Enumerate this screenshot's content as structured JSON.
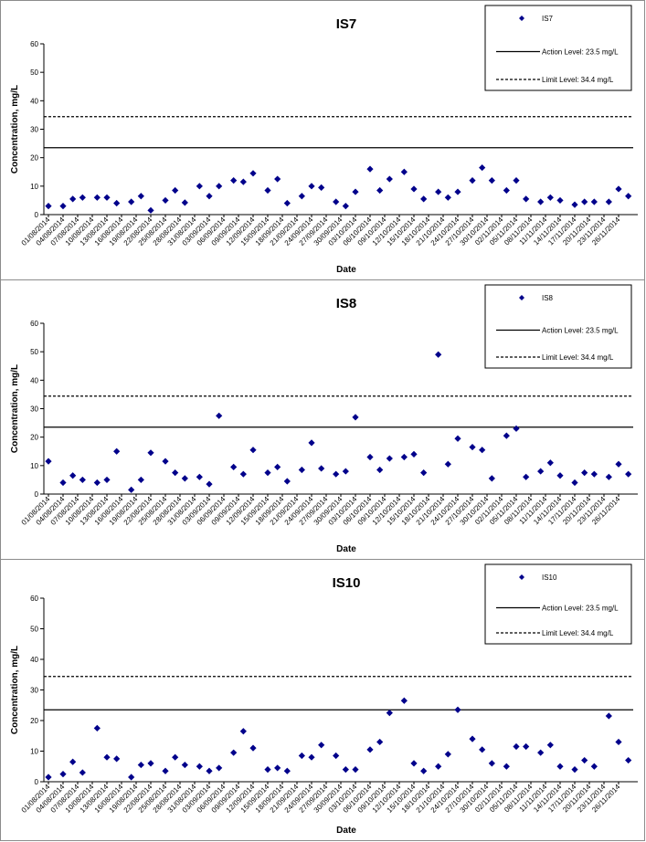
{
  "chart_data": [
    {
      "type": "scatter",
      "title": "IS7",
      "xlabel": "Date",
      "ylabel": "Concentration, mg/L",
      "ylim": [
        0,
        60
      ],
      "yticks": [
        "0",
        "10",
        "20",
        "30",
        "40",
        "50",
        "60"
      ],
      "grid": false,
      "legend_position": "top-right",
      "x_tick_labels": [
        "01/08/2014",
        "04/08/2014",
        "07/08/2014",
        "10/08/2014",
        "13/08/2014",
        "16/08/2014",
        "19/08/2014",
        "22/08/2014",
        "25/08/2014",
        "28/08/2014",
        "31/08/2014",
        "03/09/2014",
        "06/09/2014",
        "09/09/2014",
        "12/09/2014",
        "15/09/2014",
        "18/09/2014",
        "21/09/2014",
        "24/09/2014",
        "27/09/2014",
        "30/09/2014",
        "03/10/2014",
        "06/10/2014",
        "09/10/2014",
        "12/10/2014",
        "15/10/2014",
        "18/10/2014",
        "21/10/2014",
        "24/10/2014",
        "27/10/2014",
        "30/10/2014",
        "02/11/2014",
        "05/11/2014",
        "08/11/2014",
        "11/11/2014",
        "14/11/2014",
        "17/11/2014",
        "20/11/2014",
        "23/11/2014",
        "26/11/2014"
      ],
      "series": [
        {
          "name": "IS7",
          "color": "#00008b",
          "marker": "diamond",
          "x": [
            "01/08/2014",
            "04/08/2014",
            "06/08/2014",
            "08/08/2014",
            "11/08/2014",
            "13/08/2014",
            "15/08/2014",
            "18/08/2014",
            "20/08/2014",
            "22/08/2014",
            "25/08/2014",
            "27/08/2014",
            "29/08/2014",
            "01/09/2014",
            "03/09/2014",
            "05/09/2014",
            "08/09/2014",
            "10/09/2014",
            "12/09/2014",
            "15/09/2014",
            "17/09/2014",
            "19/09/2014",
            "22/09/2014",
            "24/09/2014",
            "26/09/2014",
            "29/09/2014",
            "01/10/2014",
            "03/10/2014",
            "06/10/2014",
            "08/10/2014",
            "10/10/2014",
            "13/10/2014",
            "15/10/2014",
            "17/10/2014",
            "20/10/2014",
            "22/10/2014",
            "24/10/2014",
            "27/10/2014",
            "29/10/2014",
            "31/10/2014",
            "03/11/2014",
            "05/11/2014",
            "07/11/2014",
            "10/11/2014",
            "12/11/2014",
            "14/11/2014",
            "17/11/2014",
            "19/11/2014",
            "21/11/2014",
            "24/11/2014",
            "26/11/2014",
            "28/11/2014"
          ],
          "y": [
            3,
            3,
            5.5,
            6,
            6,
            6,
            4,
            4.5,
            6.5,
            1.5,
            5,
            8.5,
            4.2,
            10,
            6.5,
            10,
            12,
            11.5,
            14.5,
            8.5,
            12.5,
            4,
            6.5,
            10,
            9.5,
            4.5,
            3,
            8,
            16,
            8.5,
            12.5,
            15,
            9,
            5.5,
            8,
            6,
            8,
            12,
            16.5,
            12,
            8.5,
            12,
            5.5,
            4.5,
            6,
            5,
            3.5,
            4.5,
            4.5,
            4.5,
            9,
            6.5
          ]
        },
        {
          "name": "Action Level: 23.5 mg/L",
          "type": "line",
          "style": "solid",
          "color": "#000000",
          "y": 23.5
        },
        {
          "name": "Limit Level: 34.4 mg/L",
          "type": "line",
          "style": "dashed",
          "color": "#000000",
          "y": 34.4
        }
      ]
    },
    {
      "type": "scatter",
      "title": "IS8",
      "xlabel": "Date",
      "ylabel": "Concentration, mg/L",
      "ylim": [
        0,
        60
      ],
      "yticks": [
        "0",
        "10",
        "20",
        "30",
        "40",
        "50",
        "60"
      ],
      "grid": false,
      "legend_position": "top-right",
      "x_tick_labels": [
        "01/08/2014",
        "04/08/2014",
        "07/08/2014",
        "10/08/2014",
        "13/08/2014",
        "16/08/2014",
        "19/08/2014",
        "22/08/2014",
        "25/08/2014",
        "28/08/2014",
        "31/08/2014",
        "03/09/2014",
        "06/09/2014",
        "09/09/2014",
        "12/09/2014",
        "15/09/2014",
        "18/09/2014",
        "21/09/2014",
        "24/09/2014",
        "27/09/2014",
        "30/09/2014",
        "03/10/2014",
        "06/10/2014",
        "09/10/2014",
        "12/10/2014",
        "15/10/2014",
        "18/10/2014",
        "21/10/2014",
        "24/10/2014",
        "27/10/2014",
        "30/10/2014",
        "02/11/2014",
        "05/11/2014",
        "08/11/2014",
        "11/11/2014",
        "14/11/2014",
        "17/11/2014",
        "20/11/2014",
        "23/11/2014",
        "26/11/2014"
      ],
      "series": [
        {
          "name": "IS8",
          "color": "#00008b",
          "marker": "diamond",
          "x": [
            "01/08/2014",
            "04/08/2014",
            "06/08/2014",
            "08/08/2014",
            "11/08/2014",
            "13/08/2014",
            "15/08/2014",
            "18/08/2014",
            "20/08/2014",
            "22/08/2014",
            "25/08/2014",
            "27/08/2014",
            "29/08/2014",
            "01/09/2014",
            "03/09/2014",
            "05/09/2014",
            "08/09/2014",
            "10/09/2014",
            "12/09/2014",
            "15/09/2014",
            "17/09/2014",
            "19/09/2014",
            "22/09/2014",
            "24/09/2014",
            "26/09/2014",
            "29/09/2014",
            "01/10/2014",
            "03/10/2014",
            "06/10/2014",
            "08/10/2014",
            "10/10/2014",
            "13/10/2014",
            "15/10/2014",
            "17/10/2014",
            "20/10/2014",
            "22/10/2014",
            "24/10/2014",
            "27/10/2014",
            "29/10/2014",
            "31/10/2014",
            "03/11/2014",
            "05/11/2014",
            "07/11/2014",
            "10/11/2014",
            "12/11/2014",
            "14/11/2014",
            "17/11/2014",
            "19/11/2014",
            "21/11/2014",
            "24/11/2014",
            "26/11/2014",
            "28/11/2014"
          ],
          "y": [
            11.5,
            4,
            6.5,
            5,
            4,
            5,
            15,
            1.5,
            5,
            14.5,
            11.5,
            7.5,
            5.5,
            6,
            3.5,
            27.5,
            9.5,
            7,
            15.5,
            7.5,
            9.5,
            4.5,
            8.5,
            18,
            9,
            7,
            8,
            27,
            13,
            8.5,
            12.5,
            13,
            14,
            7.5,
            49,
            10.5,
            19.5,
            16.5,
            15.5,
            5.5,
            20.5,
            23,
            6,
            8,
            11,
            6.5,
            4,
            7.5,
            7,
            6,
            10.5,
            7
          ]
        },
        {
          "name": "Action Level: 23.5 mg/L",
          "type": "line",
          "style": "solid",
          "color": "#000000",
          "y": 23.5
        },
        {
          "name": "Limit Level: 34.4 mg/L",
          "type": "line",
          "style": "dashed",
          "color": "#000000",
          "y": 34.4
        }
      ]
    },
    {
      "type": "scatter",
      "title": "IS10",
      "xlabel": "Date",
      "ylabel": "Concentration, mg/L",
      "ylim": [
        0,
        60
      ],
      "yticks": [
        "0",
        "10",
        "20",
        "30",
        "40",
        "50",
        "60"
      ],
      "grid": false,
      "legend_position": "top-right",
      "x_tick_labels": [
        "01/08/2014",
        "04/08/2014",
        "07/08/2014",
        "10/08/2014",
        "13/08/2014",
        "16/08/2014",
        "19/08/2014",
        "22/08/2014",
        "25/08/2014",
        "28/08/2014",
        "31/08/2014",
        "03/09/2014",
        "06/09/2014",
        "09/09/2014",
        "12/09/2014",
        "15/09/2014",
        "18/09/2014",
        "21/09/2014",
        "24/09/2014",
        "27/09/2014",
        "30/09/2014",
        "03/10/2014",
        "06/10/2014",
        "09/10/2014",
        "12/10/2014",
        "15/10/2014",
        "18/10/2014",
        "21/10/2014",
        "24/10/2014",
        "27/10/2014",
        "30/10/2014",
        "02/11/2014",
        "05/11/2014",
        "08/11/2014",
        "11/11/2014",
        "14/11/2014",
        "17/11/2014",
        "20/11/2014",
        "23/11/2014",
        "26/11/2014"
      ],
      "series": [
        {
          "name": "IS10",
          "color": "#00008b",
          "marker": "diamond",
          "x": [
            "01/08/2014",
            "04/08/2014",
            "06/08/2014",
            "08/08/2014",
            "11/08/2014",
            "13/08/2014",
            "15/08/2014",
            "18/08/2014",
            "20/08/2014",
            "22/08/2014",
            "25/08/2014",
            "27/08/2014",
            "29/08/2014",
            "01/09/2014",
            "03/09/2014",
            "05/09/2014",
            "08/09/2014",
            "10/09/2014",
            "12/09/2014",
            "15/09/2014",
            "17/09/2014",
            "19/09/2014",
            "22/09/2014",
            "24/09/2014",
            "26/09/2014",
            "29/09/2014",
            "01/10/2014",
            "03/10/2014",
            "06/10/2014",
            "08/10/2014",
            "10/10/2014",
            "13/10/2014",
            "15/10/2014",
            "17/10/2014",
            "20/10/2014",
            "22/10/2014",
            "24/10/2014",
            "27/10/2014",
            "29/10/2014",
            "31/10/2014",
            "03/11/2014",
            "05/11/2014",
            "07/11/2014",
            "10/11/2014",
            "12/11/2014",
            "14/11/2014",
            "17/11/2014",
            "19/11/2014",
            "21/11/2014",
            "24/11/2014",
            "26/11/2014",
            "28/11/2014"
          ],
          "y": [
            1.5,
            2.5,
            6.5,
            3,
            17.5,
            8,
            7.5,
            1.5,
            5.5,
            6,
            3.5,
            8,
            5.5,
            5,
            3.5,
            4.5,
            9.5,
            16.5,
            11,
            4,
            4.5,
            3.5,
            8.5,
            8,
            12,
            8.5,
            4,
            4,
            10.5,
            13,
            22.5,
            26.5,
            6,
            3.5,
            5,
            9,
            23.5,
            14,
            10.5,
            6,
            5,
            11.5,
            11.5,
            9.5,
            12,
            5,
            4,
            7,
            5,
            21.5,
            13,
            7
          ]
        },
        {
          "name": "Action Level: 23.5 mg/L",
          "type": "line",
          "style": "solid",
          "color": "#000000",
          "y": 23.5
        },
        {
          "name": "Limit Level: 34.4 mg/L",
          "type": "line",
          "style": "dashed",
          "color": "#000000",
          "y": 34.4
        }
      ]
    }
  ]
}
